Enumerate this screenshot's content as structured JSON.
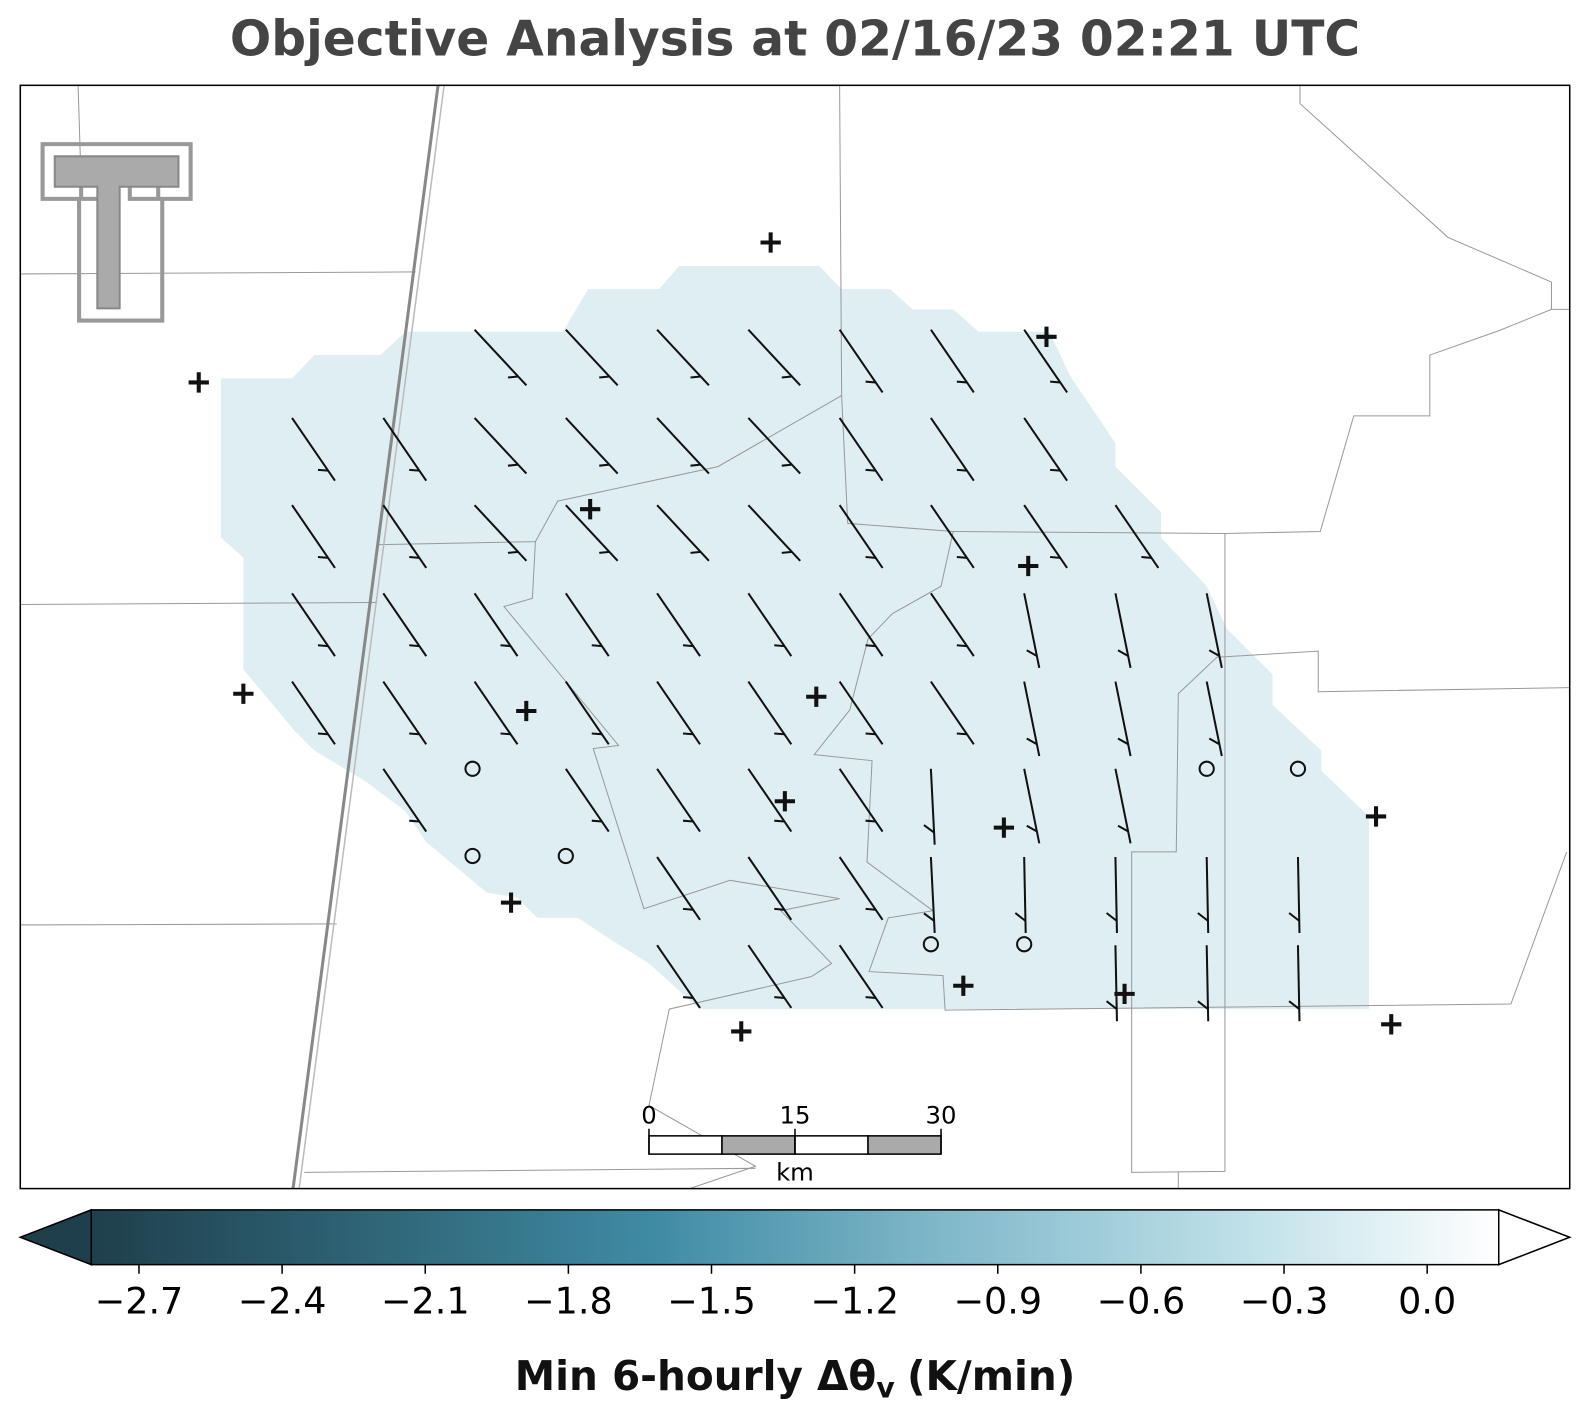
{
  "title": "Objective Analysis at 02/16/23 02:21 UTC",
  "colorbar": {
    "label": {
      "main": "Min 6-hourly Δθ",
      "subscript": "v",
      "unit": "(K/min)"
    },
    "clim": [
      -2.8,
      0.15
    ],
    "ticks": [
      {
        "value": -2.7,
        "label": "−2.7"
      },
      {
        "value": -2.4,
        "label": "−2.4"
      },
      {
        "value": -2.1,
        "label": "−2.1"
      },
      {
        "value": -1.8,
        "label": "−1.8"
      },
      {
        "value": -1.5,
        "label": "−1.5"
      },
      {
        "value": -1.2,
        "label": "−1.2"
      },
      {
        "value": -0.9,
        "label": "−0.9"
      },
      {
        "value": -0.6,
        "label": "−0.6"
      },
      {
        "value": -0.3,
        "label": "−0.3"
      },
      {
        "value": 0,
        "label": "0.0"
      }
    ],
    "colors": [
      "#1f3f4c",
      "#2f6577",
      "#3f8ba4",
      "#7fb7c9",
      "#b9dde6",
      "#ffffff"
    ],
    "extend": "both"
  },
  "scale_bar": {
    "ticks": [
      0,
      15,
      30
    ],
    "unit": "km"
  }
}
